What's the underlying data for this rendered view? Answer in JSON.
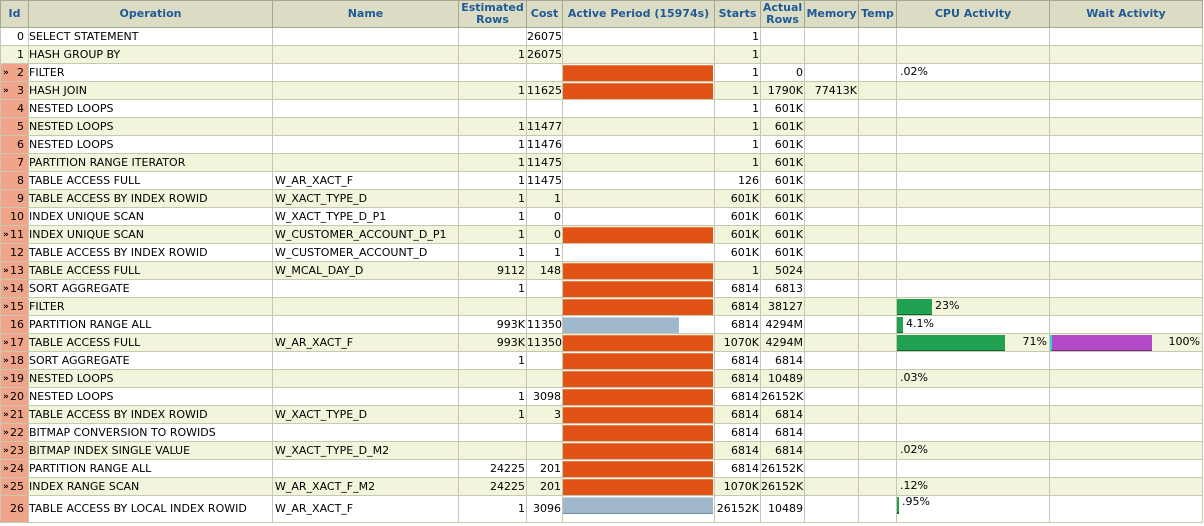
{
  "headers": {
    "id": "Id",
    "operation": "Operation",
    "name": "Name",
    "estimated_rows": "Estimated Rows",
    "cost": "Cost",
    "active_period": "Active Period (15974s)",
    "starts": "Starts",
    "actual_rows": "Actual Rows",
    "memory": "Memory",
    "temp": "Temp",
    "cpu_activity": "CPU Activity",
    "wait_activity": "Wait Activity"
  },
  "colors": {
    "active_bar": "#e15216",
    "inactive_bar": "#9fb8cc",
    "cpu_bar": "#21a152",
    "wait_bar": "#b34bc8",
    "highlight_id": "#f0a58a",
    "header_text": "#1f5a96"
  },
  "rows": [
    {
      "id": "0",
      "indent": 0,
      "operation": "SELECT STATEMENT",
      "name": "",
      "est_rows": "",
      "cost": "26075",
      "active": null,
      "starts": "1",
      "actual_rows": "",
      "memory": "",
      "temp": "",
      "cpu": null,
      "cpu_label": "",
      "wait": null,
      "wait_label": "",
      "active_marker": false
    },
    {
      "id": "1",
      "indent": 1,
      "operation": "HASH GROUP BY",
      "name": "",
      "est_rows": "1",
      "cost": "26075",
      "active": null,
      "starts": "1",
      "actual_rows": "",
      "memory": "",
      "temp": "",
      "cpu": null,
      "cpu_label": "",
      "wait": null,
      "wait_label": "",
      "active_marker": false
    },
    {
      "id": "2",
      "indent": 2,
      "operation": "FILTER",
      "name": "",
      "est_rows": "",
      "cost": "",
      "active": {
        "start": 0.0,
        "end": 1.0,
        "kind": "orange"
      },
      "starts": "1",
      "actual_rows": "0",
      "memory": "",
      "temp": "",
      "cpu": null,
      "cpu_label": ".02%",
      "wait": null,
      "wait_label": "",
      "active_marker": true
    },
    {
      "id": "3",
      "indent": 3,
      "operation": "HASH JOIN",
      "name": "",
      "est_rows": "1",
      "cost": "11625",
      "active": {
        "start": 0.0,
        "end": 1.0,
        "kind": "orange"
      },
      "starts": "1",
      "actual_rows": "1790K",
      "memory": "77413K",
      "temp": "",
      "cpu": null,
      "cpu_label": "",
      "wait": null,
      "wait_label": "",
      "active_marker": true
    },
    {
      "id": "4",
      "indent": 4,
      "operation": "NESTED LOOPS",
      "name": "",
      "est_rows": "",
      "cost": "",
      "active": null,
      "starts": "1",
      "actual_rows": "601K",
      "memory": "",
      "temp": "",
      "cpu": null,
      "cpu_label": "",
      "wait": null,
      "wait_label": "",
      "active_marker": false
    },
    {
      "id": "5",
      "indent": 5,
      "operation": "NESTED LOOPS",
      "name": "",
      "est_rows": "1",
      "cost": "11477",
      "active": null,
      "starts": "1",
      "actual_rows": "601K",
      "memory": "",
      "temp": "",
      "cpu": null,
      "cpu_label": "",
      "wait": null,
      "wait_label": "",
      "active_marker": false
    },
    {
      "id": "6",
      "indent": 6,
      "operation": "NESTED LOOPS",
      "name": "",
      "est_rows": "1",
      "cost": "11476",
      "active": null,
      "starts": "1",
      "actual_rows": "601K",
      "memory": "",
      "temp": "",
      "cpu": null,
      "cpu_label": "",
      "wait": null,
      "wait_label": "",
      "active_marker": false
    },
    {
      "id": "7",
      "indent": 7,
      "operation": "PARTITION RANGE ITERATOR",
      "name": "",
      "est_rows": "1",
      "cost": "11475",
      "active": null,
      "starts": "1",
      "actual_rows": "601K",
      "memory": "",
      "temp": "",
      "cpu": null,
      "cpu_label": "",
      "wait": null,
      "wait_label": "",
      "active_marker": false
    },
    {
      "id": "8",
      "indent": 8,
      "operation": "TABLE ACCESS FULL",
      "name": "W_AR_XACT_F",
      "est_rows": "1",
      "cost": "11475",
      "active": null,
      "starts": "126",
      "actual_rows": "601K",
      "memory": "",
      "temp": "",
      "cpu": null,
      "cpu_label": "",
      "wait": null,
      "wait_label": "",
      "active_marker": false
    },
    {
      "id": "9",
      "indent": 7,
      "operation": "TABLE ACCESS BY INDEX ROWID",
      "name": "W_XACT_TYPE_D",
      "est_rows": "1",
      "cost": "1",
      "active": null,
      "starts": "601K",
      "actual_rows": "601K",
      "memory": "",
      "temp": "",
      "cpu": null,
      "cpu_label": "",
      "wait": null,
      "wait_label": "",
      "active_marker": false
    },
    {
      "id": "10",
      "indent": 8,
      "operation": "INDEX UNIQUE SCAN",
      "name": "W_XACT_TYPE_D_P1",
      "est_rows": "1",
      "cost": "0",
      "active": null,
      "starts": "601K",
      "actual_rows": "601K",
      "memory": "",
      "temp": "",
      "cpu": null,
      "cpu_label": "",
      "wait": null,
      "wait_label": "",
      "active_marker": false
    },
    {
      "id": "11",
      "indent": 6,
      "operation": "INDEX UNIQUE SCAN",
      "name": "W_CUSTOMER_ACCOUNT_D_P1",
      "est_rows": "1",
      "cost": "0",
      "active": {
        "start": 0.0,
        "end": 1.0,
        "kind": "orange"
      },
      "starts": "601K",
      "actual_rows": "601K",
      "memory": "",
      "temp": "",
      "cpu": null,
      "cpu_label": "",
      "wait": null,
      "wait_label": "",
      "active_marker": true
    },
    {
      "id": "12",
      "indent": 5,
      "operation": "TABLE ACCESS BY INDEX ROWID",
      "name": "W_CUSTOMER_ACCOUNT_D",
      "est_rows": "1",
      "cost": "1",
      "active": null,
      "starts": "601K",
      "actual_rows": "601K",
      "memory": "",
      "temp": "",
      "cpu": null,
      "cpu_label": "",
      "wait": null,
      "wait_label": "",
      "active_marker": false
    },
    {
      "id": "13",
      "indent": 4,
      "operation": "TABLE ACCESS FULL",
      "name": "W_MCAL_DAY_D",
      "est_rows": "9112",
      "cost": "148",
      "active": {
        "start": 0.0,
        "end": 1.0,
        "kind": "orange"
      },
      "starts": "1",
      "actual_rows": "5024",
      "memory": "",
      "temp": "",
      "cpu": null,
      "cpu_label": "",
      "wait": null,
      "wait_label": "",
      "active_marker": true
    },
    {
      "id": "14",
      "indent": 3,
      "operation": "SORT AGGREGATE",
      "name": "",
      "est_rows": "1",
      "cost": "",
      "active": {
        "start": 0.0,
        "end": 1.0,
        "kind": "orange"
      },
      "starts": "6814",
      "actual_rows": "6813",
      "memory": "",
      "temp": "",
      "cpu": null,
      "cpu_label": "",
      "wait": null,
      "wait_label": "",
      "active_marker": true
    },
    {
      "id": "15",
      "indent": 4,
      "operation": "FILTER",
      "name": "",
      "est_rows": "",
      "cost": "",
      "active": {
        "start": 0.0,
        "end": 1.0,
        "kind": "orange"
      },
      "starts": "6814",
      "actual_rows": "38127",
      "memory": "",
      "temp": "",
      "cpu": 0.23,
      "cpu_label": "23%",
      "wait": null,
      "wait_label": "",
      "active_marker": true
    },
    {
      "id": "16",
      "indent": 5,
      "operation": "PARTITION RANGE ALL",
      "name": "",
      "est_rows": "993K",
      "cost": "11350",
      "active": {
        "start": 0.0,
        "end": 0.77,
        "kind": "blue"
      },
      "starts": "6814",
      "actual_rows": "4294M",
      "memory": "",
      "temp": "",
      "cpu": 0.041,
      "cpu_label": "4.1%",
      "wait": null,
      "wait_label": "",
      "active_marker": false
    },
    {
      "id": "17",
      "indent": 6,
      "operation": "TABLE ACCESS FULL",
      "name": "W_AR_XACT_F",
      "est_rows": "993K",
      "cost": "11350",
      "active": {
        "start": 0.0,
        "end": 1.0,
        "kind": "orange"
      },
      "starts": "1070K",
      "actual_rows": "4294M",
      "memory": "",
      "temp": "",
      "cpu": 0.71,
      "cpu_label": "71%",
      "wait": 1.0,
      "wait_label": "100%",
      "active_marker": true
    },
    {
      "id": "18",
      "indent": 5,
      "operation": "SORT AGGREGATE",
      "name": "",
      "est_rows": "1",
      "cost": "",
      "active": {
        "start": 0.0,
        "end": 1.0,
        "kind": "orange"
      },
      "starts": "6814",
      "actual_rows": "6814",
      "memory": "",
      "temp": "",
      "cpu": null,
      "cpu_label": "",
      "wait": null,
      "wait_label": "",
      "active_marker": true
    },
    {
      "id": "19",
      "indent": 6,
      "operation": "NESTED LOOPS",
      "name": "",
      "est_rows": "",
      "cost": "",
      "active": {
        "start": 0.0,
        "end": 1.0,
        "kind": "orange"
      },
      "starts": "6814",
      "actual_rows": "10489",
      "memory": "",
      "temp": "",
      "cpu": null,
      "cpu_label": ".03%",
      "wait": null,
      "wait_label": "",
      "active_marker": true
    },
    {
      "id": "20",
      "indent": 7,
      "operation": "NESTED LOOPS",
      "name": "",
      "est_rows": "1",
      "cost": "3098",
      "active": {
        "start": 0.0,
        "end": 1.0,
        "kind": "orange"
      },
      "starts": "6814",
      "actual_rows": "26152K",
      "memory": "",
      "temp": "",
      "cpu": null,
      "cpu_label": "",
      "wait": null,
      "wait_label": "",
      "active_marker": true
    },
    {
      "id": "21",
      "indent": 8,
      "operation": "TABLE ACCESS BY INDEX ROWID",
      "name": "W_XACT_TYPE_D",
      "est_rows": "1",
      "cost": "3",
      "active": {
        "start": 0.0,
        "end": 1.0,
        "kind": "orange"
      },
      "starts": "6814",
      "actual_rows": "6814",
      "memory": "",
      "temp": "",
      "cpu": null,
      "cpu_label": "",
      "wait": null,
      "wait_label": "",
      "active_marker": true
    },
    {
      "id": "22",
      "indent": 9,
      "operation": "BITMAP CONVERSION TO ROWIDS",
      "name": "",
      "est_rows": "",
      "cost": "",
      "active": {
        "start": 0.0,
        "end": 1.0,
        "kind": "orange"
      },
      "starts": "6814",
      "actual_rows": "6814",
      "memory": "",
      "temp": "",
      "cpu": null,
      "cpu_label": "",
      "wait": null,
      "wait_label": "",
      "active_marker": true
    },
    {
      "id": "23",
      "indent": 10,
      "operation": "BITMAP INDEX SINGLE VALUE",
      "name": "W_XACT_TYPE_D_M2",
      "est_rows": "",
      "cost": "",
      "active": {
        "start": 0.0,
        "end": 1.0,
        "kind": "orange"
      },
      "starts": "6814",
      "actual_rows": "6814",
      "memory": "",
      "temp": "",
      "cpu": null,
      "cpu_label": ".02%",
      "wait": null,
      "wait_label": "",
      "active_marker": true
    },
    {
      "id": "24",
      "indent": 8,
      "operation": "PARTITION RANGE ALL",
      "name": "",
      "est_rows": "24225",
      "cost": "201",
      "active": {
        "start": 0.0,
        "end": 1.0,
        "kind": "orange"
      },
      "starts": "6814",
      "actual_rows": "26152K",
      "memory": "",
      "temp": "",
      "cpu": null,
      "cpu_label": "",
      "wait": null,
      "wait_label": "",
      "active_marker": true
    },
    {
      "id": "25",
      "indent": 9,
      "operation": "INDEX RANGE SCAN",
      "name": "W_AR_XACT_F_M2",
      "est_rows": "24225",
      "cost": "201",
      "active": {
        "start": 0.0,
        "end": 1.0,
        "kind": "orange"
      },
      "starts": "1070K",
      "actual_rows": "26152K",
      "memory": "",
      "temp": "",
      "cpu": null,
      "cpu_label": ".12%",
      "wait": null,
      "wait_label": "",
      "active_marker": true
    },
    {
      "id": "26",
      "indent": 8,
      "operation": "TABLE ACCESS BY LOCAL INDEX ROWID",
      "name": "W_AR_XACT_F",
      "est_rows": "1",
      "cost": "3096",
      "active": {
        "start": 0.0,
        "end": 1.0,
        "kind": "blue"
      },
      "starts": "26152K",
      "actual_rows": "10489",
      "memory": "",
      "temp": "",
      "cpu": 0.0095,
      "cpu_label": ".95%",
      "wait": null,
      "wait_label": "",
      "active_marker": false
    }
  ]
}
